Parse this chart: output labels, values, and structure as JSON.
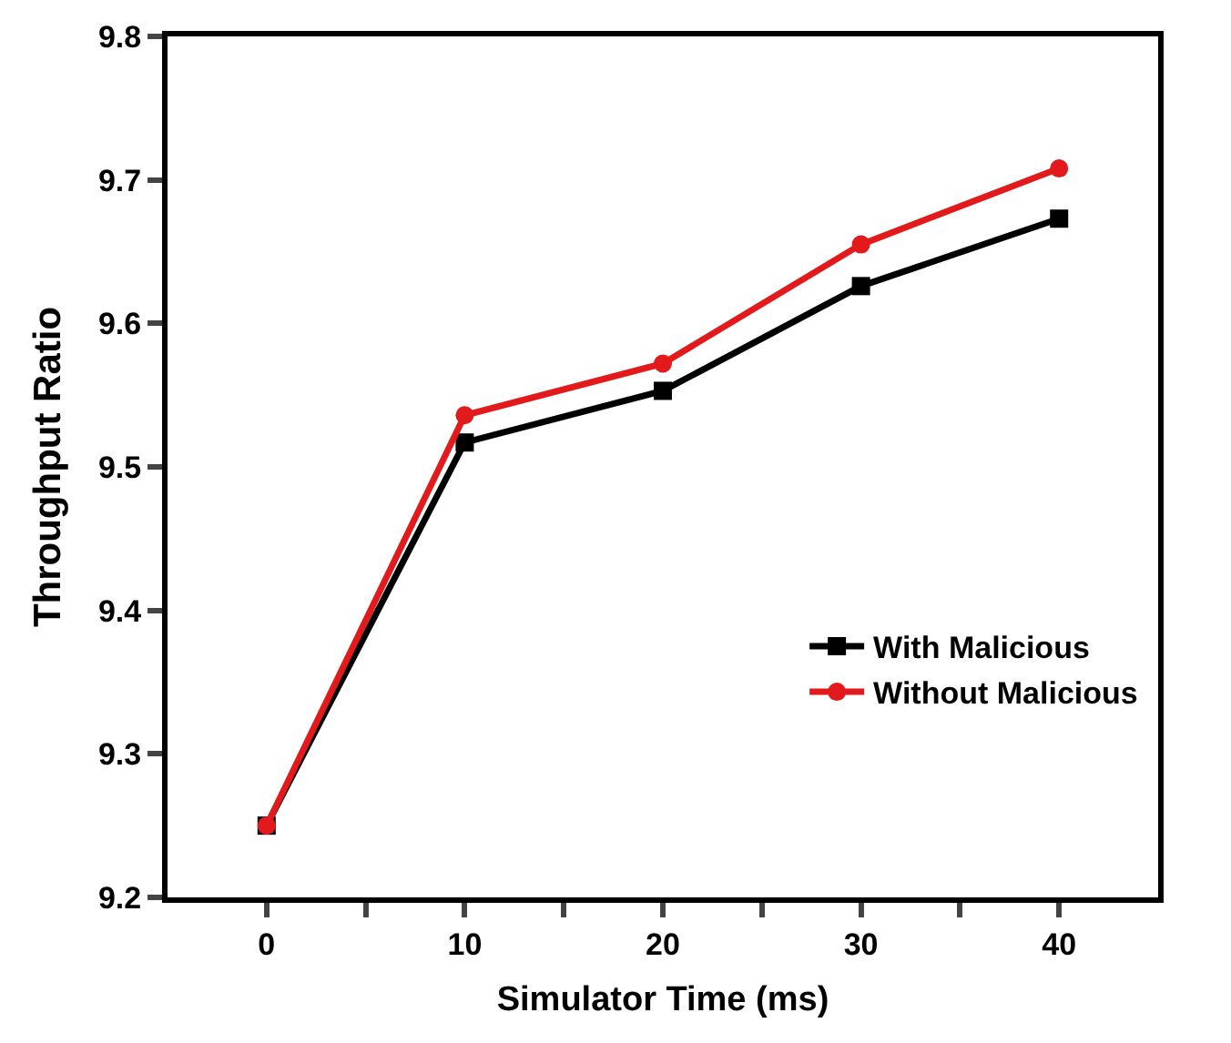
{
  "chart_data": {
    "type": "line",
    "xlabel": "Simulator Time (ms)",
    "ylabel": "Throughput Ratio",
    "x": [
      0,
      10,
      20,
      30,
      40
    ],
    "series": [
      {
        "name": "With Malicious",
        "color": "#000000",
        "marker": "square",
        "values": [
          9.25,
          9.517,
          9.553,
          9.626,
          9.673
        ]
      },
      {
        "name": "Without Malicious",
        "color": "#e31a1c",
        "marker": "circle",
        "values": [
          9.25,
          9.536,
          9.572,
          9.655,
          9.708
        ]
      }
    ],
    "xlim": [
      -5,
      45
    ],
    "xticks": [
      0,
      {
        "value": 5,
        "label": null
      },
      10,
      {
        "value": 15,
        "label": null
      },
      20,
      {
        "value": 25,
        "label": null
      },
      30,
      {
        "value": 35,
        "label": null
      },
      40
    ],
    "ylim": [
      9.2,
      9.8
    ],
    "yticks": [
      9.2,
      9.3,
      9.4,
      9.5,
      9.6,
      9.7,
      9.8
    ],
    "legend": "bottom right",
    "line_style": "solid"
  }
}
